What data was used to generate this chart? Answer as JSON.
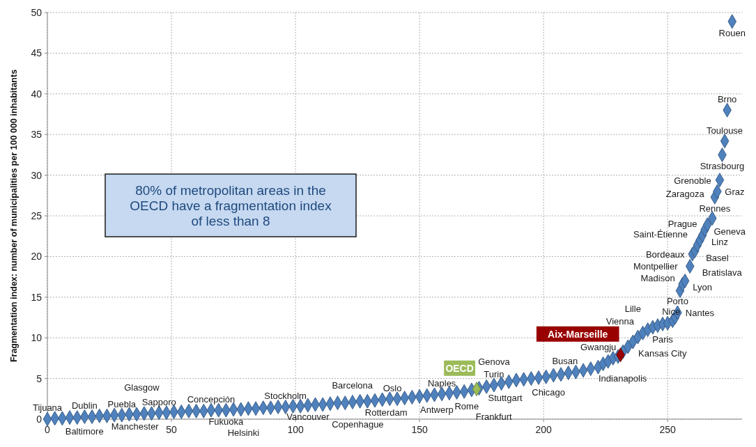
{
  "chart_data": {
    "type": "scatter",
    "ylabel": "Fragmentation index: number of municipalities per 100 000 inhabitants",
    "xlim": [
      0,
      280
    ],
    "ylim": [
      0,
      50
    ],
    "xticks": [
      0,
      50,
      100,
      150,
      200,
      250
    ],
    "yticks": [
      0,
      5,
      10,
      15,
      20,
      25,
      30,
      35,
      40,
      45,
      50
    ],
    "grid": true,
    "marker": "diamond",
    "annotations": [
      "80% of metropolitan areas in the OECD have a fragmentation index of less than 8",
      {
        "text": "Tijuana",
        "x": 0,
        "y": 0.05
      },
      {
        "text": "Baltimore",
        "x": 3,
        "y": 0.1
      },
      {
        "text": "Dublin",
        "x": 15,
        "y": 0.3
      },
      {
        "text": "Manchester",
        "x": 27,
        "y": 0.5
      },
      {
        "text": "Puebla",
        "x": 30,
        "y": 0.55
      },
      {
        "text": "Sapporo",
        "x": 45,
        "y": 0.8
      },
      {
        "text": "Glasgow",
        "x": 48,
        "y": 0.85
      },
      {
        "text": "Concepción",
        "x": 66,
        "y": 1.1
      },
      {
        "text": "Fukuoka",
        "x": 72,
        "y": 1.15
      },
      {
        "text": "Stockholm",
        "x": 84,
        "y": 1.35
      },
      {
        "text": "Helsinki",
        "x": 90,
        "y": 1.45
      },
      {
        "text": "Vancouver",
        "x": 105,
        "y": 1.7
      },
      {
        "text": "Barcelona",
        "x": 111,
        "y": 1.85
      },
      {
        "text": "Rotterdam",
        "x": 129,
        "y": 2.25
      },
      {
        "text": "Oslo",
        "x": 132,
        "y": 2.3
      },
      {
        "text": "Copenhague",
        "x": 138,
        "y": 2.5
      },
      {
        "text": "Antwerp",
        "x": 147,
        "y": 2.7
      },
      {
        "text": "Naples",
        "x": 159,
        "y": 3.1
      },
      {
        "text": "Rome",
        "x": 162,
        "y": 3.2
      },
      {
        "text": "Frankfurt",
        "x": 168,
        "y": 3.45
      },
      {
        "text": "Stuttgart",
        "x": 177,
        "y": 4.0
      },
      {
        "text": "Turin",
        "x": 180,
        "y": 4.2
      },
      {
        "text": "Genova",
        "x": 189,
        "y": 4.8
      },
      {
        "text": "Chicago",
        "x": 192,
        "y": 4.9
      },
      {
        "text": "Busan",
        "x": 213,
        "y": 5.85
      },
      {
        "text": "Indianapolis",
        "x": 222,
        "y": 6.4
      },
      {
        "text": "Gwangju",
        "x": 228,
        "y": 7.5
      },
      {
        "text": "Kansas City",
        "x": 234,
        "y": 8.9
      },
      {
        "text": "Vienna",
        "x": 236,
        "y": 9.5
      },
      {
        "text": "Paris",
        "x": 240,
        "y": 10.6
      },
      {
        "text": "Lille",
        "x": 244,
        "y": 11.3
      },
      {
        "text": "Porto",
        "x": 246,
        "y": 11.5
      },
      {
        "text": "Nantes",
        "x": 254,
        "y": 13.1
      },
      {
        "text": "Rouen",
        "x": 276,
        "y": 48.9
      },
      {
        "text": "Brno",
        "x": 274,
        "y": 38.0
      },
      {
        "text": "Toulouse",
        "x": 273,
        "y": 34.2
      },
      {
        "text": "Strasbourg",
        "x": 272,
        "y": 32.5
      },
      {
        "text": "Grenoble",
        "x": 271,
        "y": 29.4
      },
      {
        "text": "Graz",
        "x": 270,
        "y": 28.0
      },
      {
        "text": "Rennes",
        "x": 269,
        "y": 27.3
      },
      {
        "text": "Zaragoza",
        "x": 268,
        "y": 24.7
      },
      {
        "text": "Geneva",
        "x": 266,
        "y": 23.9
      },
      {
        "text": "Prague",
        "x": 265,
        "y": 23.3
      },
      {
        "text": "Linz",
        "x": 264,
        "y": 22.6
      },
      {
        "text": "Saint-Étienne",
        "x": 263,
        "y": 22.0
      },
      {
        "text": "Basel",
        "x": 262,
        "y": 21.4
      },
      {
        "text": "Bordeaux",
        "x": 260,
        "y": 20.3
      },
      {
        "text": "Montpellier",
        "x": 259,
        "y": 18.8
      },
      {
        "text": "Bratislava",
        "x": 259,
        "y": 18.8
      },
      {
        "text": "Lyon",
        "x": 257,
        "y": 17.0
      },
      {
        "text": "Madison",
        "x": 256,
        "y": 16.6
      },
      {
        "text": "Nice",
        "x": 255,
        "y": 15.8
      }
    ],
    "series": [
      {
        "color": "#4f81bd",
        "x": [
          0,
          3,
          6,
          9,
          12,
          15,
          18,
          21,
          24,
          27,
          30,
          33,
          36,
          39,
          42,
          45,
          48,
          51,
          54,
          57,
          60,
          63,
          66,
          69,
          72,
          75,
          78,
          81,
          84,
          87,
          90,
          93,
          96,
          99,
          102,
          105,
          108,
          111,
          114,
          117,
          120,
          123,
          126,
          129,
          132,
          135,
          138,
          141,
          144,
          147,
          150,
          153,
          156,
          159,
          162,
          165,
          168,
          171,
          174,
          177,
          180,
          183,
          186,
          189,
          192,
          195,
          198,
          201,
          204,
          207,
          210,
          213,
          216,
          219,
          222,
          224,
          226,
          228,
          230,
          232,
          234,
          236,
          238,
          240,
          242,
          244,
          246,
          248,
          250,
          252,
          253,
          254,
          255,
          256,
          257,
          259,
          260,
          261,
          262,
          263,
          264,
          265,
          266,
          268,
          269,
          270,
          271,
          272,
          273,
          274,
          276
        ],
        "values": [
          0.0,
          0.1,
          0.1,
          0.2,
          0.2,
          0.3,
          0.3,
          0.4,
          0.4,
          0.5,
          0.5,
          0.6,
          0.6,
          0.7,
          0.7,
          0.8,
          0.8,
          0.9,
          0.9,
          1.0,
          1.0,
          1.0,
          1.1,
          1.1,
          1.1,
          1.2,
          1.2,
          1.3,
          1.3,
          1.4,
          1.4,
          1.5,
          1.5,
          1.6,
          1.6,
          1.7,
          1.8,
          1.8,
          1.9,
          2.0,
          2.0,
          2.1,
          2.2,
          2.2,
          2.3,
          2.4,
          2.5,
          2.5,
          2.6,
          2.7,
          2.8,
          2.9,
          3.0,
          3.1,
          3.2,
          3.3,
          3.4,
          3.6,
          3.8,
          4.0,
          4.2,
          4.4,
          4.6,
          4.8,
          4.9,
          5.0,
          5.1,
          5.2,
          5.4,
          5.5,
          5.7,
          5.8,
          6.0,
          6.2,
          6.4,
          6.8,
          7.1,
          7.5,
          7.7,
          8.3,
          8.9,
          9.5,
          10.1,
          10.6,
          11.0,
          11.3,
          11.5,
          11.7,
          11.8,
          12.1,
          12.5,
          13.1,
          15.8,
          16.6,
          17.0,
          18.8,
          20.3,
          20.7,
          21.4,
          22.0,
          22.6,
          23.3,
          23.9,
          24.7,
          27.3,
          28.0,
          29.4,
          32.5,
          34.2,
          38.0,
          48.9
        ]
      },
      {
        "name": "OECD",
        "color": "#9bbb59",
        "x": [
          173
        ],
        "values": [
          3.7
        ]
      },
      {
        "name": "Aix-Marseille",
        "color": "#990000",
        "x": [
          231
        ],
        "values": [
          7.9
        ]
      }
    ]
  }
}
